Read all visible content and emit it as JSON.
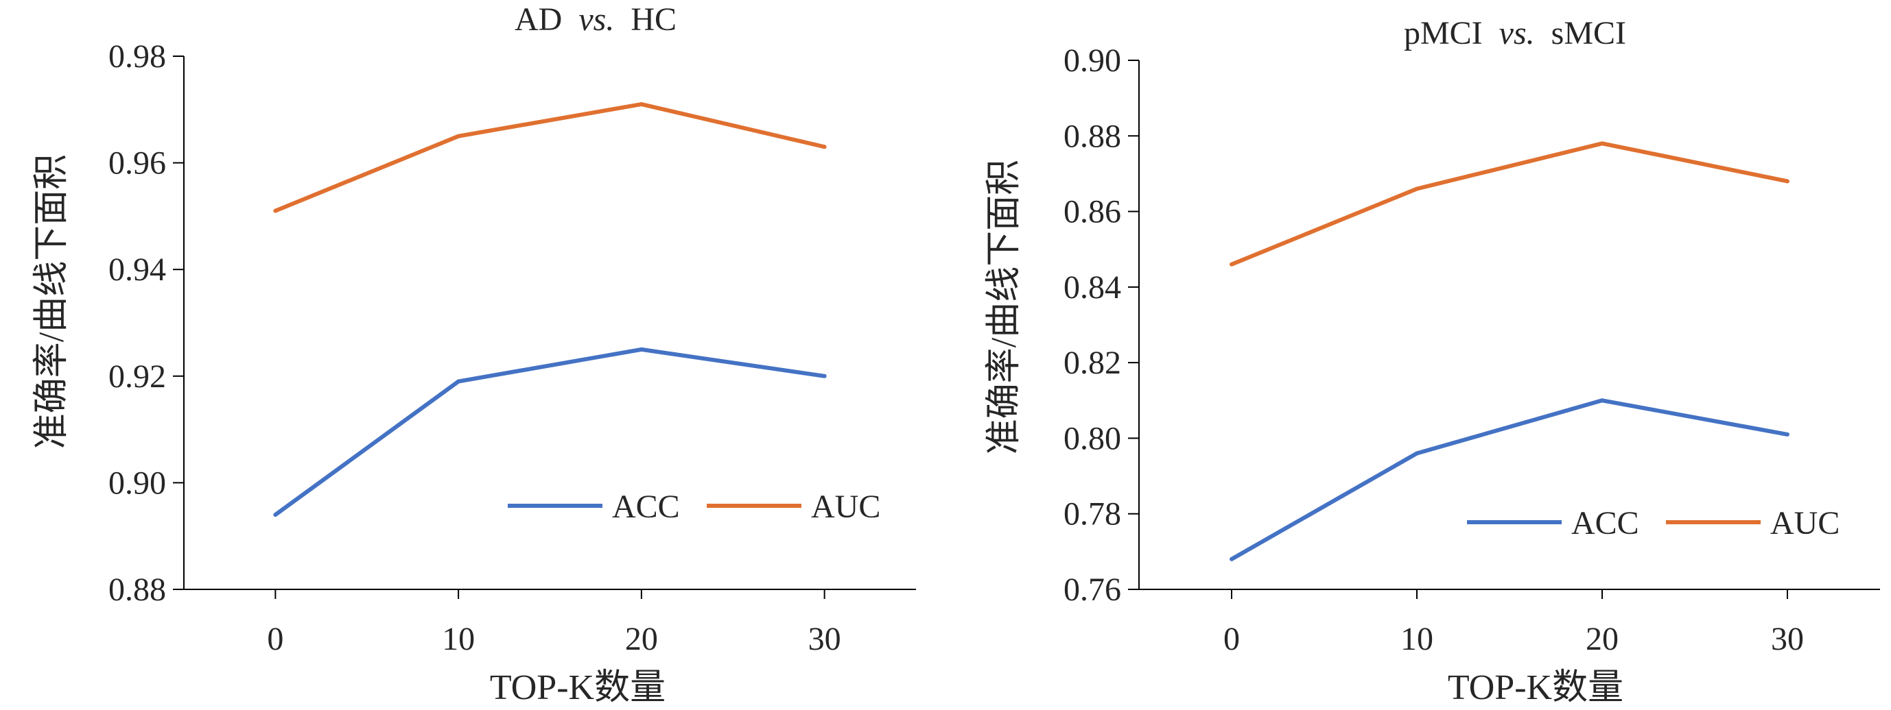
{
  "chart_data": [
    {
      "type": "line",
      "title_main": "AD",
      "title_vs": "vs.",
      "title_tail": "HC",
      "xlabel": "TOP-K数量",
      "ylabel": "准确率/曲线下面积",
      "x": [
        0,
        10,
        20,
        30
      ],
      "x_ticks": [
        "0",
        "10",
        "20",
        "30"
      ],
      "y_ticks": [
        "0.88",
        "0.90",
        "0.92",
        "0.94",
        "0.96",
        "0.98"
      ],
      "ylim": [
        0.88,
        0.98
      ],
      "xlim": [
        -5,
        35
      ],
      "legend_position": "bottom-right",
      "series": [
        {
          "name": "ACC",
          "color": "#4472C4",
          "values": [
            0.894,
            0.919,
            0.925,
            0.92
          ]
        },
        {
          "name": "AUC",
          "color": "#E07030",
          "values": [
            0.951,
            0.965,
            0.971,
            0.963
          ]
        }
      ]
    },
    {
      "type": "line",
      "title_main": "pMCI",
      "title_vs": "vs.",
      "title_tail": "sMCI",
      "xlabel": "TOP-K数量",
      "ylabel": "准确率/曲线下面积",
      "x": [
        0,
        10,
        20,
        30
      ],
      "x_ticks": [
        "0",
        "10",
        "20",
        "30"
      ],
      "y_ticks": [
        "0.76",
        "0.78",
        "0.80",
        "0.82",
        "0.84",
        "0.86",
        "0.88",
        "0.90"
      ],
      "ylim": [
        0.76,
        0.9
      ],
      "xlim": [
        -5,
        35
      ],
      "legend_position": "bottom-right",
      "series": [
        {
          "name": "ACC",
          "color": "#4472C4",
          "values": [
            0.768,
            0.796,
            0.81,
            0.801
          ]
        },
        {
          "name": "AUC",
          "color": "#E07030",
          "values": [
            0.846,
            0.866,
            0.878,
            0.868
          ]
        }
      ]
    }
  ]
}
